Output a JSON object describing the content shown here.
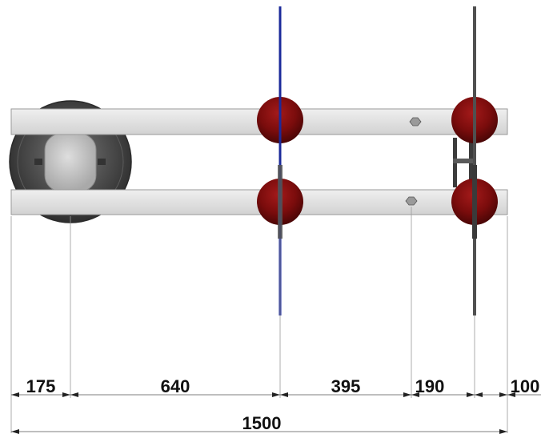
{
  "dimensions": {
    "segment_a": "175",
    "segment_b": "640",
    "segment_c": "395",
    "segment_d": "190",
    "segment_e": "100",
    "overall": "1500"
  },
  "colors": {
    "beam": "#e0e0e0",
    "ball": "#7a0c0c",
    "rod_blue": "#1b2a9a",
    "rod_grey": "#505050",
    "drum": "#4a4a4a"
  }
}
